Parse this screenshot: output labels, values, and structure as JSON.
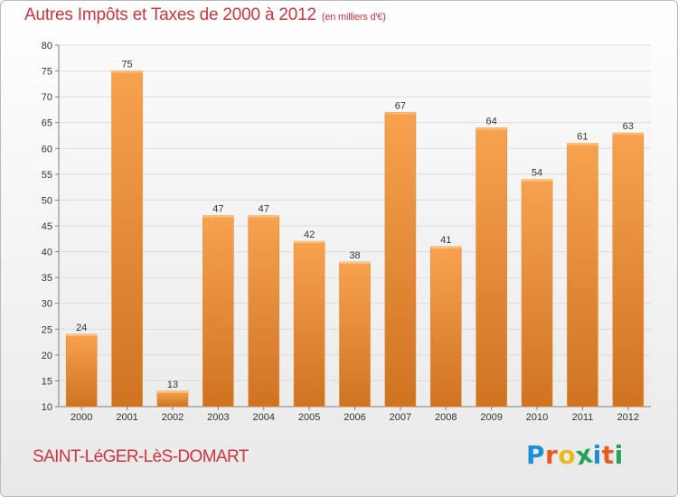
{
  "title": "Autres Impôts et Taxes de 2000 à 2012",
  "unit_note": "(en milliers d'€)",
  "commune": "SAINT-LéGER-LèS-DOMART",
  "logo": {
    "letters": [
      "P",
      "r",
      "o",
      "x",
      "i",
      "t",
      "i"
    ],
    "colors": [
      "#1c8fd8",
      "#e95a23",
      "#e8b91a",
      "#25a15a",
      "#1c8fd8",
      "#e95a23",
      "#25a15a"
    ]
  },
  "colors": {
    "title": "#d3333f",
    "bar_light": "#f7a24f",
    "bar_dark": "#cf7321",
    "grid": "#dcdcdc",
    "axis": "#808080"
  },
  "chart_data": {
    "type": "bar",
    "categories": [
      "2000",
      "2001",
      "2002",
      "2003",
      "2004",
      "2005",
      "2006",
      "2007",
      "2008",
      "2009",
      "2010",
      "2011",
      "2012"
    ],
    "values": [
      24,
      75,
      13,
      47,
      47,
      42,
      38,
      67,
      41,
      64,
      54,
      61,
      63
    ],
    "ylim": [
      10,
      80
    ],
    "yticks": [
      10,
      15,
      20,
      25,
      30,
      35,
      40,
      45,
      50,
      55,
      60,
      65,
      70,
      75,
      80
    ],
    "grid": true,
    "data_labels": true
  }
}
